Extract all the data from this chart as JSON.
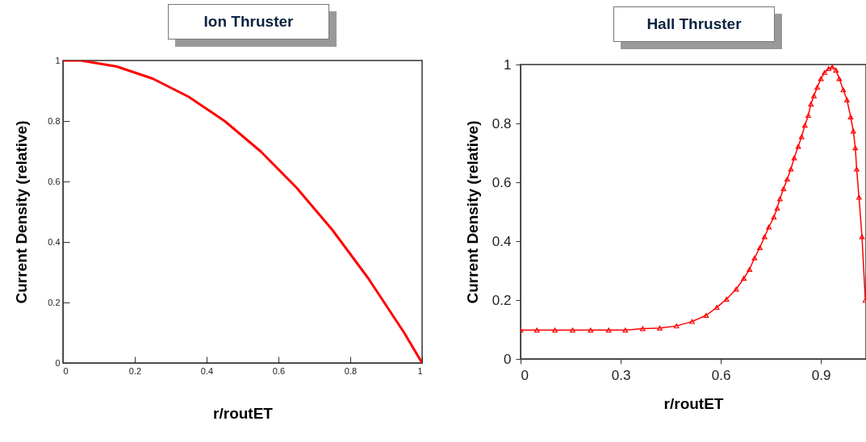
{
  "chart_data": [
    {
      "type": "line",
      "title": "Ion Thruster",
      "xlabel": "r/routET",
      "ylabel": "Current Density (relative)",
      "xlim": [
        0,
        1
      ],
      "ylim": [
        0,
        1
      ],
      "xticks": [
        0,
        0.2,
        0.4,
        0.6,
        0.8,
        1
      ],
      "yticks": [
        0,
        0.2,
        0.4,
        0.6,
        0.8,
        1
      ],
      "grid": false,
      "marker": "none",
      "line_style": "solid",
      "x": [
        0,
        0.05,
        0.1,
        0.15,
        0.2,
        0.25,
        0.3,
        0.35,
        0.4,
        0.45,
        0.5,
        0.55,
        0.6,
        0.65,
        0.7,
        0.75,
        0.8,
        0.85,
        0.9,
        0.95,
        1
      ],
      "series": [
        {
          "color": "#ff0000",
          "values": [
            1,
            1,
            0.99,
            0.98,
            0.96,
            0.94,
            0.91,
            0.88,
            0.84,
            0.8,
            0.75,
            0.7,
            0.64,
            0.58,
            0.51,
            0.44,
            0.36,
            0.28,
            0.19,
            0.1,
            0
          ]
        }
      ]
    },
    {
      "type": "line",
      "title": "Hall Thruster",
      "xlabel": "r/routET",
      "ylabel": "Current Density (relative)",
      "xlim": [
        0,
        1.035
      ],
      "ylim": [
        0,
        1
      ],
      "xticks": [
        0,
        0.3,
        0.6,
        0.9
      ],
      "yticks": [
        0,
        0.2,
        0.4,
        0.6,
        0.8,
        1
      ],
      "grid": false,
      "marker": "triangle",
      "line_style": "solid",
      "x": [
        0,
        0.049,
        0.103,
        0.156,
        0.21,
        0.264,
        0.314,
        0.366,
        0.417,
        0.467,
        0.514,
        0.556,
        0.588,
        0.617,
        0.646,
        0.669,
        0.686,
        0.701,
        0.717,
        0.731,
        0.744,
        0.759,
        0.769,
        0.777,
        0.788,
        0.799,
        0.81,
        0.82,
        0.832,
        0.842,
        0.852,
        0.862,
        0.87,
        0.879,
        0.889,
        0.9,
        0.911,
        0.923,
        0.934,
        0.945,
        0.955,
        0.967,
        0.978,
        0.989,
        0.997,
        1.003,
        1.007,
        1.014,
        1.023,
        1.033
      ],
      "series": [
        {
          "color": "#ff0000",
          "values": [
            0.098,
            0.098,
            0.098,
            0.098,
            0.098,
            0.098,
            0.098,
            0.103,
            0.105,
            0.112,
            0.127,
            0.148,
            0.175,
            0.203,
            0.237,
            0.274,
            0.304,
            0.343,
            0.378,
            0.415,
            0.448,
            0.482,
            0.512,
            0.544,
            0.578,
            0.611,
            0.645,
            0.683,
            0.722,
            0.755,
            0.794,
            0.827,
            0.866,
            0.894,
            0.923,
            0.952,
            0.973,
            0.986,
            0.992,
            0.981,
            0.952,
            0.914,
            0.88,
            0.822,
            0.774,
            0.717,
            0.645,
            0.549,
            0.415,
            0.199
          ]
        }
      ]
    }
  ]
}
